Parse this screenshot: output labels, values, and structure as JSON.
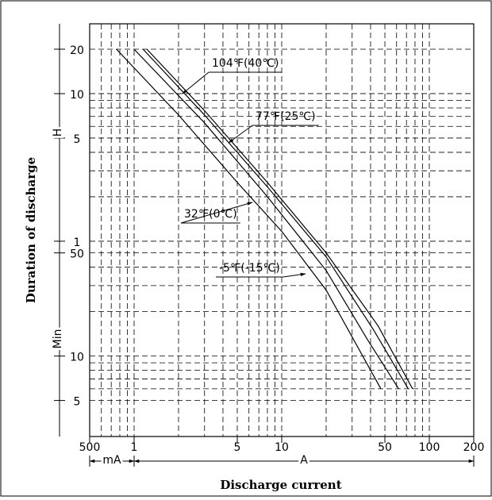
{
  "chart_data": {
    "type": "line",
    "x_label": "Discharge current",
    "y_label": "Duration of discharge",
    "x_units": [
      {
        "label": "mA",
        "from": 0.5,
        "to": 1
      },
      {
        "label": "A",
        "from": 1,
        "to": 200
      }
    ],
    "y_units": [
      {
        "label": "H",
        "from": 60,
        "to": 1783
      },
      {
        "label": "Min",
        "from": 2.85,
        "to": 60
      }
    ],
    "log_x": true,
    "log_y": true,
    "grid": true,
    "xlim": [
      0.5,
      200
    ],
    "ylim": [
      2.85,
      1783
    ],
    "xticks": [
      {
        "value": 0.5,
        "label": "500"
      },
      1,
      5,
      10,
      50,
      100,
      200
    ],
    "yticks": [
      {
        "value": 1200,
        "label": "20"
      },
      {
        "value": 600,
        "label": "10"
      },
      {
        "value": 300,
        "label": "5"
      },
      {
        "value": 60,
        "label": "1"
      },
      50,
      10,
      5
    ],
    "xgrid": [
      0.6,
      0.7,
      0.8,
      0.9,
      1,
      2,
      3,
      4,
      5,
      6,
      7,
      8,
      9,
      10,
      20,
      30,
      40,
      50,
      60,
      70,
      80,
      90,
      100
    ],
    "ygrid": [
      5,
      6,
      7,
      8,
      9,
      10,
      20,
      30,
      40,
      50,
      60,
      120,
      180,
      240,
      300,
      360,
      420,
      480,
      540,
      600,
      1200
    ],
    "series": [
      {
        "name": "104℉(40℃)",
        "color": "#000000",
        "x": [
          1.22,
          3,
          8,
          20,
          45,
          77
        ],
        "values": [
          1200,
          460,
          150,
          50,
          16,
          6
        ]
      },
      {
        "name": "77℉(25℃)",
        "color": "#000000",
        "x": [
          1.15,
          3,
          8,
          20,
          42,
          72
        ],
        "values": [
          1200,
          430,
          140,
          47,
          15,
          6
        ]
      },
      {
        "name": "32℉(0℃)",
        "color": "#000000",
        "x": [
          1,
          3,
          8,
          20,
          38,
          62
        ],
        "values": [
          1200,
          380,
          120,
          38,
          13,
          6
        ]
      },
      {
        "name": "-5℉(-15℃)",
        "color": "#000000",
        "x": [
          0.76,
          2,
          5,
          10,
          20,
          47
        ],
        "values": [
          1200,
          430,
          150,
          70,
          28,
          6
        ]
      }
    ]
  }
}
